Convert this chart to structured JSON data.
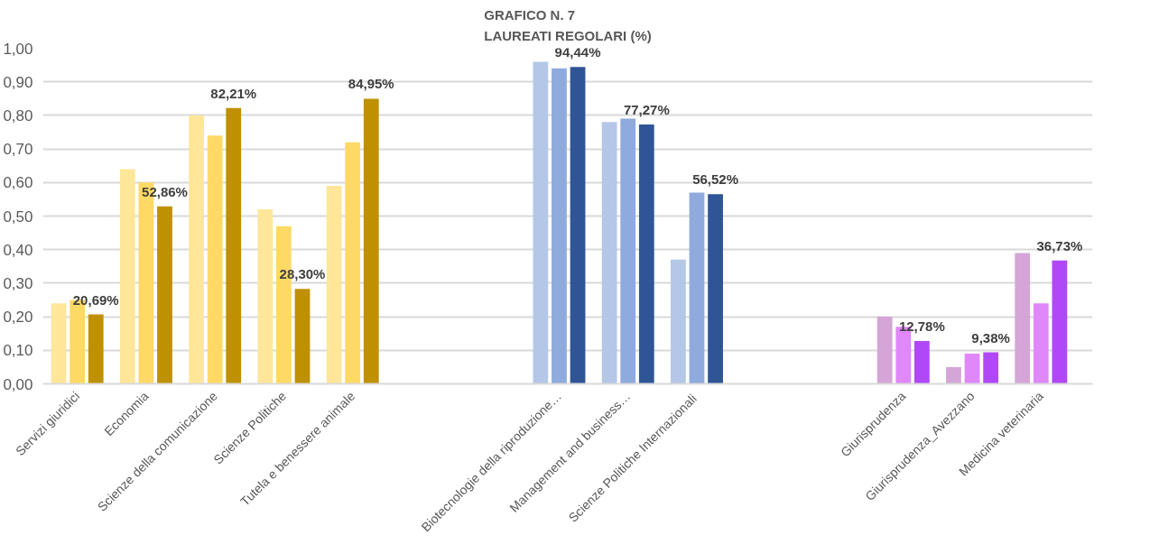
{
  "chart_data": {
    "type": "bar",
    "title": "GRAFICO N. 7\nLAUREATI REGOLARI (%)",
    "categories": [
      "Servizi giuridici",
      "Economia",
      "Scienze della comunicazione",
      "Scienze Politiche",
      "Tutela e benessere animale",
      null,
      null,
      "Biotecnologie della riproduzione…",
      "Management and business…",
      "Scienze Politiche  Internazionali",
      null,
      null,
      "Giurisprudenza",
      "Giurisprudenza_Avezzano",
      "Medicina veterinaria"
    ],
    "series": [
      {
        "colors": [
          "#ffe699",
          "#ffe699",
          "#ffe699",
          "#ffe699",
          "#ffe699",
          null,
          null,
          "#b4c7e7",
          "#b4c7e7",
          "#b4c7e7",
          null,
          null,
          "#d4a5d6",
          "#d4a5d6",
          "#d4a5d6"
        ],
        "values": [
          0.24,
          0.64,
          0.8,
          0.52,
          0.59,
          null,
          null,
          0.96,
          0.78,
          0.37,
          null,
          null,
          0.2,
          0.05,
          0.39
        ]
      },
      {
        "colors": [
          "#ffd966",
          "#ffd966",
          "#ffd966",
          "#ffd966",
          "#ffd966",
          null,
          null,
          "#8faadc",
          "#8faadc",
          "#8faadc",
          null,
          null,
          "#e088fa",
          "#e088fa",
          "#e088fa"
        ],
        "values": [
          0.25,
          0.6,
          0.74,
          0.47,
          0.72,
          null,
          null,
          0.94,
          0.79,
          0.57,
          null,
          null,
          0.17,
          0.09,
          0.24
        ]
      },
      {
        "colors": [
          "#bf9000",
          "#bf9000",
          "#bf9000",
          "#bf9000",
          "#bf9000",
          null,
          null,
          "#2f5597",
          "#2f5597",
          "#2f5597",
          null,
          null,
          "#b048f8",
          "#b048f8",
          "#b048f8"
        ],
        "values": [
          0.2069,
          0.5286,
          0.8221,
          0.283,
          0.8495,
          null,
          null,
          0.9444,
          0.7727,
          0.5652,
          null,
          null,
          0.1278,
          0.0938,
          0.3673
        ],
        "value_labels": [
          "20,69%",
          "52,86%",
          "82,21%",
          "28,30%",
          "84,95%",
          null,
          null,
          "94,44%",
          "77,27%",
          "56,52%",
          null,
          null,
          "12,78%",
          "9,38%",
          "36,73%"
        ]
      }
    ],
    "ylim": [
      0,
      1.0
    ],
    "yticks": [
      {
        "value": 0,
        "label": "0,00"
      },
      {
        "value": 0.1,
        "label": "0,10"
      },
      {
        "value": 0.2,
        "label": "0,20"
      },
      {
        "value": 0.3,
        "label": "0,30"
      },
      {
        "value": 0.4,
        "label": "0,40"
      },
      {
        "value": 0.5,
        "label": "0,50"
      },
      {
        "value": 0.6,
        "label": "0,60"
      },
      {
        "value": 0.7,
        "label": "0,70"
      },
      {
        "value": 0.8,
        "label": "0,80"
      },
      {
        "value": 0.9,
        "label": "0,90"
      },
      {
        "value": 1.0,
        "label": "1,00"
      }
    ],
    "grid": "y"
  }
}
